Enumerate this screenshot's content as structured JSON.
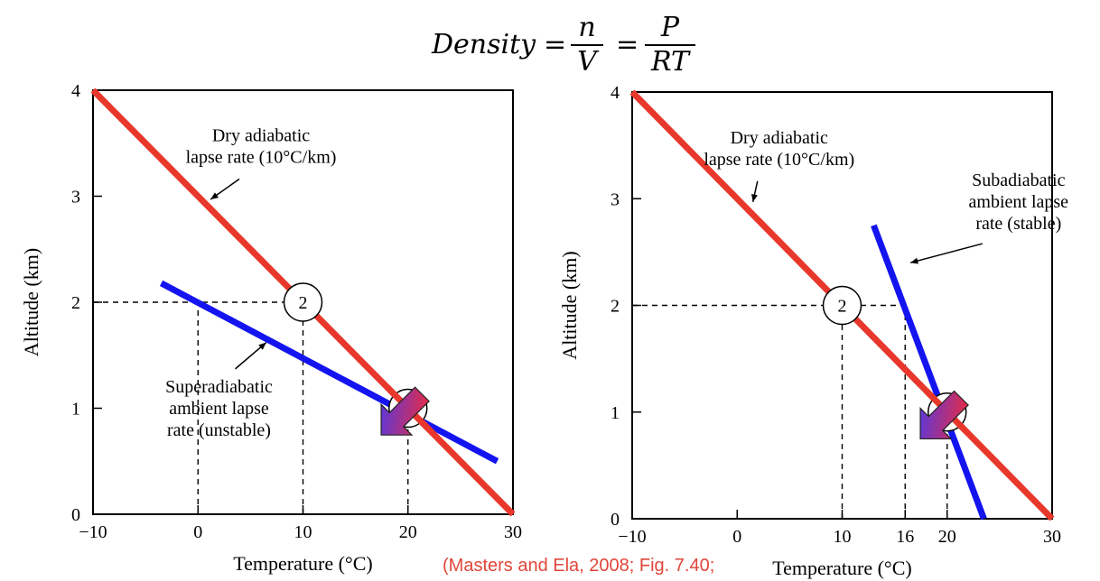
{
  "equation": {
    "lhs": "Density",
    "equals": "=",
    "frac1_num": "n",
    "frac1_den": "V",
    "frac2_num": "P",
    "frac2_den": "RT"
  },
  "citation": "(Masters and Ela, 2008; Fig. 7.40;",
  "colors": {
    "dry_adiabatic": "#e8382b",
    "ambient": "#1414f0",
    "axis": "#000000",
    "citation": "#e0463a"
  },
  "chart_data": [
    {
      "type": "line",
      "xlabel": "Temperature (°C)",
      "ylabel": "Altitude (km)",
      "xlim": [
        -10,
        30
      ],
      "ylim": [
        0,
        4
      ],
      "xticks": [
        "−10",
        "0",
        "10",
        "20",
        "30"
      ],
      "xtick_values": [
        -10,
        0,
        10,
        20,
        30
      ],
      "yticks": [
        "0",
        "1",
        "2",
        "3",
        "4"
      ],
      "ytick_values": [
        0,
        1,
        2,
        3,
        4
      ],
      "grid": false,
      "series": [
        {
          "name": "Dry adiabatic lapse rate (10°C/km)",
          "color": "#e8382b",
          "x": [
            -10,
            30
          ],
          "y": [
            4,
            0
          ]
        },
        {
          "name": "Superadiabatic ambient lapse rate (unstable)",
          "color": "#1414f0",
          "x": [
            -3.5,
            28.5
          ],
          "y": [
            2.18,
            0.5
          ]
        }
      ],
      "guides": [
        {
          "x": [
            -10,
            10
          ],
          "y": [
            2,
            2
          ]
        },
        {
          "x": [
            0,
            0
          ],
          "y": [
            0,
            2
          ]
        },
        {
          "x": [
            10,
            10
          ],
          "y": [
            0,
            2
          ]
        },
        {
          "x": [
            20,
            20
          ],
          "y": [
            0,
            1
          ]
        }
      ],
      "markers": [
        {
          "label": "2",
          "x": 10,
          "y": 2
        },
        {
          "label": "",
          "x": 20,
          "y": 1
        }
      ],
      "parcel_arrow": {
        "from": [
          20,
          1
        ],
        "to": [
          18.5,
          1.2
        ]
      },
      "annotations": [
        {
          "lines": [
            "Dry adiabatic",
            "lapse rate (10°C/km)"
          ],
          "x": 6,
          "y": 3.52,
          "arrow_to": [
            1.2,
            2.97
          ]
        },
        {
          "lines": [
            "Superadiabatic",
            "ambient lapse",
            "rate (unstable)"
          ],
          "x": 2,
          "y": 1.15,
          "arrow_to": [
            6.5,
            1.62
          ]
        }
      ]
    },
    {
      "type": "line",
      "xlabel": "Temperature (°C)",
      "ylabel": "Altitude (km)",
      "xlim": [
        -10,
        30
      ],
      "ylim": [
        0,
        4
      ],
      "xticks": [
        "−10",
        "0",
        "10",
        "16",
        "20",
        "30"
      ],
      "xtick_values": [
        -10,
        0,
        10,
        16,
        20,
        30
      ],
      "yticks": [
        "0",
        "1",
        "2",
        "3",
        "4"
      ],
      "ytick_values": [
        0,
        1,
        2,
        3,
        4
      ],
      "grid": false,
      "series": [
        {
          "name": "Dry adiabatic lapse rate (10°C/km)",
          "color": "#e8382b",
          "x": [
            -10,
            30
          ],
          "y": [
            4,
            0
          ]
        },
        {
          "name": "Subadiabatic ambient lapse rate (stable)",
          "color": "#1414f0",
          "x": [
            13,
            23.5
          ],
          "y": [
            2.75,
            0
          ]
        }
      ],
      "guides": [
        {
          "x": [
            -10,
            16
          ],
          "y": [
            2,
            2
          ]
        },
        {
          "x": [
            10,
            10
          ],
          "y": [
            0,
            2
          ]
        },
        {
          "x": [
            16,
            16
          ],
          "y": [
            0,
            2
          ]
        },
        {
          "x": [
            20,
            20
          ],
          "y": [
            0,
            1
          ]
        }
      ],
      "markers": [
        {
          "label": "2",
          "x": 10,
          "y": 2
        },
        {
          "label": "",
          "x": 20,
          "y": 1
        }
      ],
      "parcel_arrow": {
        "from": [
          20,
          1
        ],
        "to": [
          18.5,
          1.2
        ]
      },
      "annotations": [
        {
          "lines": [
            "Dry adiabatic",
            "lapse rate (10°C/km)"
          ],
          "x": 4,
          "y": 3.52,
          "arrow_to": [
            1.5,
            2.97
          ]
        },
        {
          "lines": [
            "Subadiabatic",
            "ambient lapse",
            "rate (stable)"
          ],
          "x": 26.8,
          "y": 3.12,
          "arrow_to": [
            16.5,
            2.4
          ]
        }
      ]
    }
  ]
}
